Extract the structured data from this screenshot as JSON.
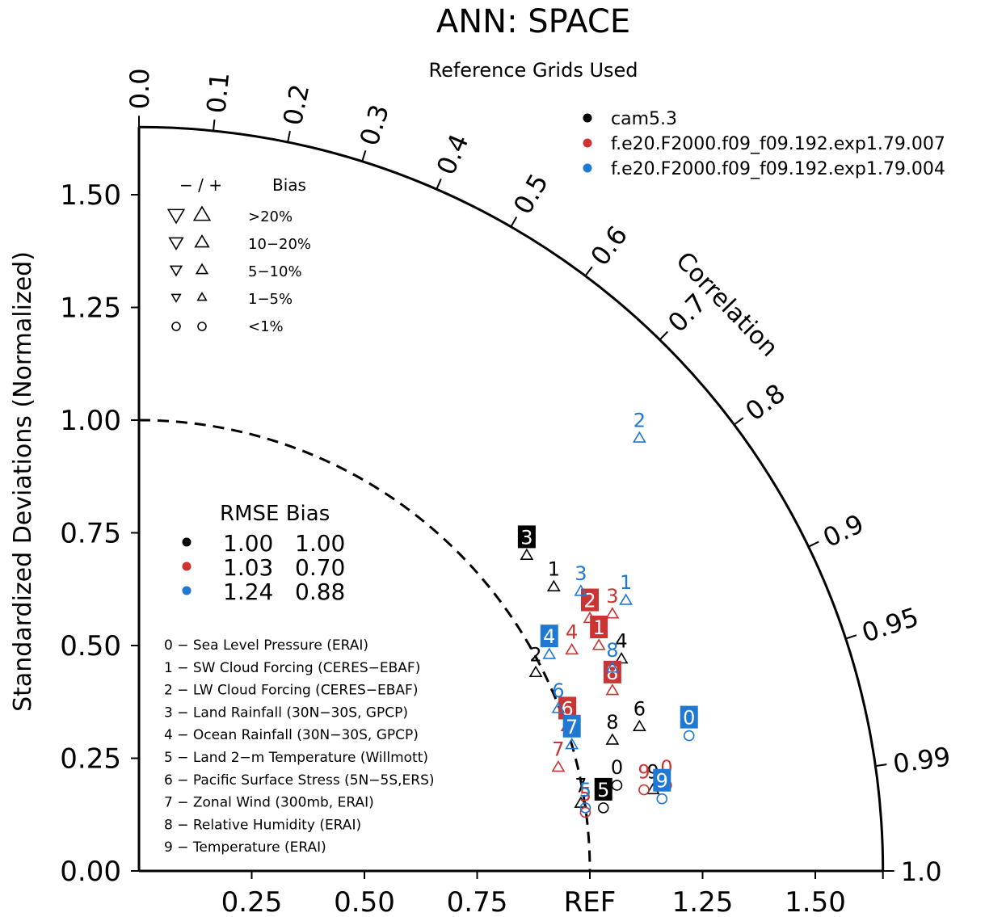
{
  "title": "ANN: SPACE",
  "subtitle": "Reference Grids Used",
  "colors": {
    "black": "#000000",
    "red": "#cc3333",
    "blue": "#1f78d1"
  },
  "chart_data": {
    "type": "taylor",
    "ylabel": "Standardized Deviations (Normalized)",
    "x_ticks": [
      "0.25",
      "0.50",
      "0.75",
      "REF",
      "1.25",
      "1.50"
    ],
    "y_ticks": [
      "0.00",
      "0.25",
      "0.50",
      "0.75",
      "1.00",
      "1.25",
      "1.50"
    ],
    "std_max": 1.65,
    "corr_label": "Correlation",
    "corr_ticks": [
      {
        "label": "0.0",
        "r": 0.0
      },
      {
        "label": "0.1",
        "r": 0.1
      },
      {
        "label": "0.2",
        "r": 0.2
      },
      {
        "label": "0.3",
        "r": 0.3
      },
      {
        "label": "0.4",
        "r": 0.4
      },
      {
        "label": "0.5",
        "r": 0.5
      },
      {
        "label": "0.6",
        "r": 0.6
      },
      {
        "label": "0.7",
        "r": 0.7
      },
      {
        "label": "0.8",
        "r": 0.8
      },
      {
        "label": "0.9",
        "r": 0.9
      },
      {
        "label": "0.95",
        "r": 0.95
      },
      {
        "label": "0.99",
        "r": 0.99
      },
      {
        "label": "1.0",
        "r": 1.0
      }
    ],
    "legend_cases": [
      {
        "name": "cam5.3",
        "color": "black"
      },
      {
        "name": "f.e20.F2000.f09_f09.192.exp1.79.007",
        "color": "red"
      },
      {
        "name": "f.e20.F2000.f09_f09.192.exp1.79.004",
        "color": "blue"
      }
    ],
    "bias_legend": {
      "header_sign": "− / +",
      "header_bias": "Bias",
      "rows": [
        {
          "label": ">20%",
          "sym": "tri",
          "size": 13
        },
        {
          "label": "10−20%",
          "sym": "tri",
          "size": 11
        },
        {
          "label": "5−10%",
          "sym": "tri",
          "size": 9
        },
        {
          "label": "1−5%",
          "sym": "tri",
          "size": 7
        },
        {
          "label": "<1%",
          "sym": "circle",
          "size": 5
        }
      ]
    },
    "rmse_table": {
      "header": "RMSE Bias",
      "rows": [
        {
          "color": "black",
          "rmse": "1.00",
          "bias": "1.00"
        },
        {
          "color": "red",
          "rmse": "1.03",
          "bias": "0.70"
        },
        {
          "color": "blue",
          "rmse": "1.24",
          "bias": "0.88"
        }
      ]
    },
    "variables": [
      "0 − Sea Level Pressure (ERAI)",
      "1 − SW Cloud Forcing (CERES−EBAF)",
      "2 − LW Cloud Forcing (CERES−EBAF)",
      "3 − Land Rainfall (30N−30S, GPCP)",
      "4 − Ocean Rainfall (30N−30S, GPCP)",
      "5 − Land 2−m Temperature (Willmott)",
      "6 − Pacific Surface Stress (5N−5S,ERS)",
      "7 − Zonal Wind (300mb, ERAI)",
      "8 − Relative Humidity (ERAI)",
      "9 − Temperature (ERAI)"
    ],
    "points": [
      {
        "case": "black",
        "label": "0",
        "x": 1.06,
        "y": 0.19,
        "sym": "circle",
        "boxed": false
      },
      {
        "case": "black",
        "label": "1",
        "x": 0.92,
        "y": 0.63,
        "sym": "tri",
        "boxed": false
      },
      {
        "case": "black",
        "label": "2",
        "x": 0.88,
        "y": 0.44,
        "sym": "tri",
        "boxed": false
      },
      {
        "case": "black",
        "label": "3",
        "x": 0.86,
        "y": 0.7,
        "sym": "tri",
        "boxed": true
      },
      {
        "case": "black",
        "label": "4",
        "x": 1.07,
        "y": 0.47,
        "sym": "tri",
        "boxed": false
      },
      {
        "case": "black",
        "label": "5",
        "x": 1.03,
        "y": 0.14,
        "sym": "circle",
        "boxed": true
      },
      {
        "case": "black",
        "label": "6",
        "x": 1.11,
        "y": 0.32,
        "sym": "tri",
        "boxed": false
      },
      {
        "case": "black",
        "label": "7",
        "x": 0.98,
        "y": 0.15,
        "sym": "tri",
        "boxed": false
      },
      {
        "case": "black",
        "label": "8",
        "x": 1.05,
        "y": 0.29,
        "sym": "tri",
        "boxed": false
      },
      {
        "case": "black",
        "label": "9",
        "x": 1.14,
        "y": 0.18,
        "sym": "tri",
        "boxed": false
      },
      {
        "case": "red",
        "label": "0",
        "x": 1.17,
        "y": 0.19,
        "sym": "circle",
        "boxed": false
      },
      {
        "case": "red",
        "label": "1",
        "x": 1.02,
        "y": 0.5,
        "sym": "tri",
        "boxed": true
      },
      {
        "case": "red",
        "label": "2",
        "x": 1.0,
        "y": 0.56,
        "sym": "tri",
        "boxed": true
      },
      {
        "case": "red",
        "label": "3",
        "x": 1.05,
        "y": 0.57,
        "sym": "tri",
        "boxed": false
      },
      {
        "case": "red",
        "label": "4",
        "x": 0.96,
        "y": 0.49,
        "sym": "tri",
        "boxed": false
      },
      {
        "case": "red",
        "label": "5",
        "x": 0.99,
        "y": 0.13,
        "sym": "circle",
        "boxed": false
      },
      {
        "case": "red",
        "label": "6",
        "x": 0.95,
        "y": 0.32,
        "sym": "tri",
        "boxed": true
      },
      {
        "case": "red",
        "label": "7",
        "x": 0.93,
        "y": 0.23,
        "sym": "tri",
        "boxed": false
      },
      {
        "case": "red",
        "label": "8",
        "x": 1.05,
        "y": 0.4,
        "sym": "tri",
        "boxed": true
      },
      {
        "case": "red",
        "label": "9",
        "x": 1.12,
        "y": 0.18,
        "sym": "circle",
        "boxed": false
      },
      {
        "case": "blue",
        "label": "0",
        "x": 1.22,
        "y": 0.3,
        "sym": "circle",
        "boxed": true
      },
      {
        "case": "blue",
        "label": "1",
        "x": 1.08,
        "y": 0.6,
        "sym": "tri",
        "boxed": false
      },
      {
        "case": "blue",
        "label": "2",
        "x": 1.11,
        "y": 0.96,
        "sym": "tri",
        "boxed": false
      },
      {
        "case": "blue",
        "label": "3",
        "x": 0.98,
        "y": 0.62,
        "sym": "tri",
        "boxed": false
      },
      {
        "case": "blue",
        "label": "4",
        "x": 0.91,
        "y": 0.48,
        "sym": "tri",
        "boxed": true
      },
      {
        "case": "blue",
        "label": "5",
        "x": 0.99,
        "y": 0.14,
        "sym": "circle",
        "boxed": false
      },
      {
        "case": "blue",
        "label": "6",
        "x": 0.93,
        "y": 0.36,
        "sym": "tri",
        "boxed": false
      },
      {
        "case": "blue",
        "label": "7",
        "x": 0.96,
        "y": 0.28,
        "sym": "tri",
        "boxed": true
      },
      {
        "case": "blue",
        "label": "8",
        "x": 1.05,
        "y": 0.45,
        "sym": "tri",
        "boxed": false
      },
      {
        "case": "blue",
        "label": "9",
        "x": 1.16,
        "y": 0.16,
        "sym": "circle",
        "boxed": true
      }
    ]
  }
}
